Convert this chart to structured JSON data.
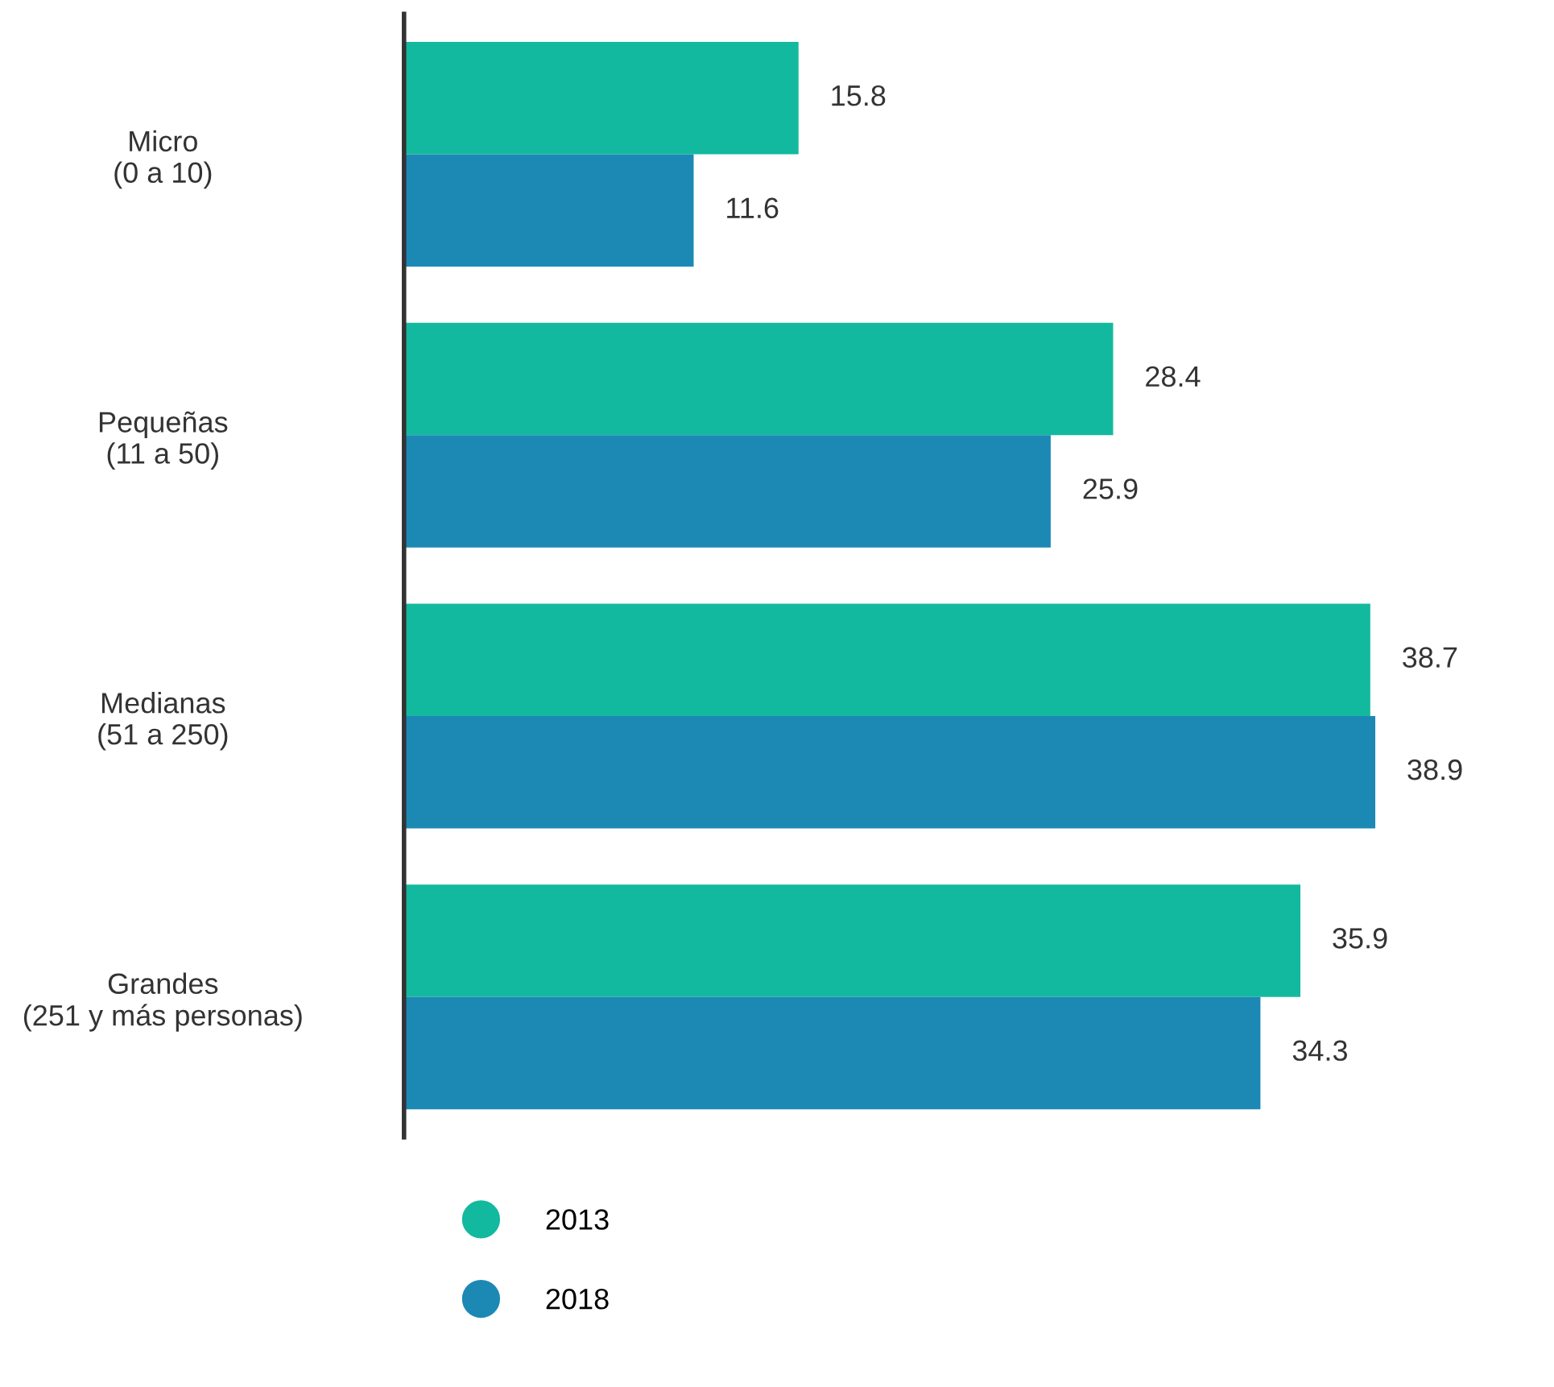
{
  "chart_data": {
    "type": "bar",
    "orientation": "horizontal",
    "categories": [
      "Micro\n(0 a 10)",
      "Pequeñas\n(11 a 50)",
      "Medianas\n(51 a 250)",
      "Grandes\n(251 y más personas)"
    ],
    "series": [
      {
        "name": "2013",
        "color": "#13b99e",
        "values": [
          15.8,
          28.4,
          38.7,
          35.9
        ]
      },
      {
        "name": "2018",
        "color": "#1c89b4",
        "values": [
          11.6,
          25.9,
          38.9,
          34.3
        ]
      }
    ],
    "data_labels": true,
    "legend": "bottom",
    "grid": false
  }
}
